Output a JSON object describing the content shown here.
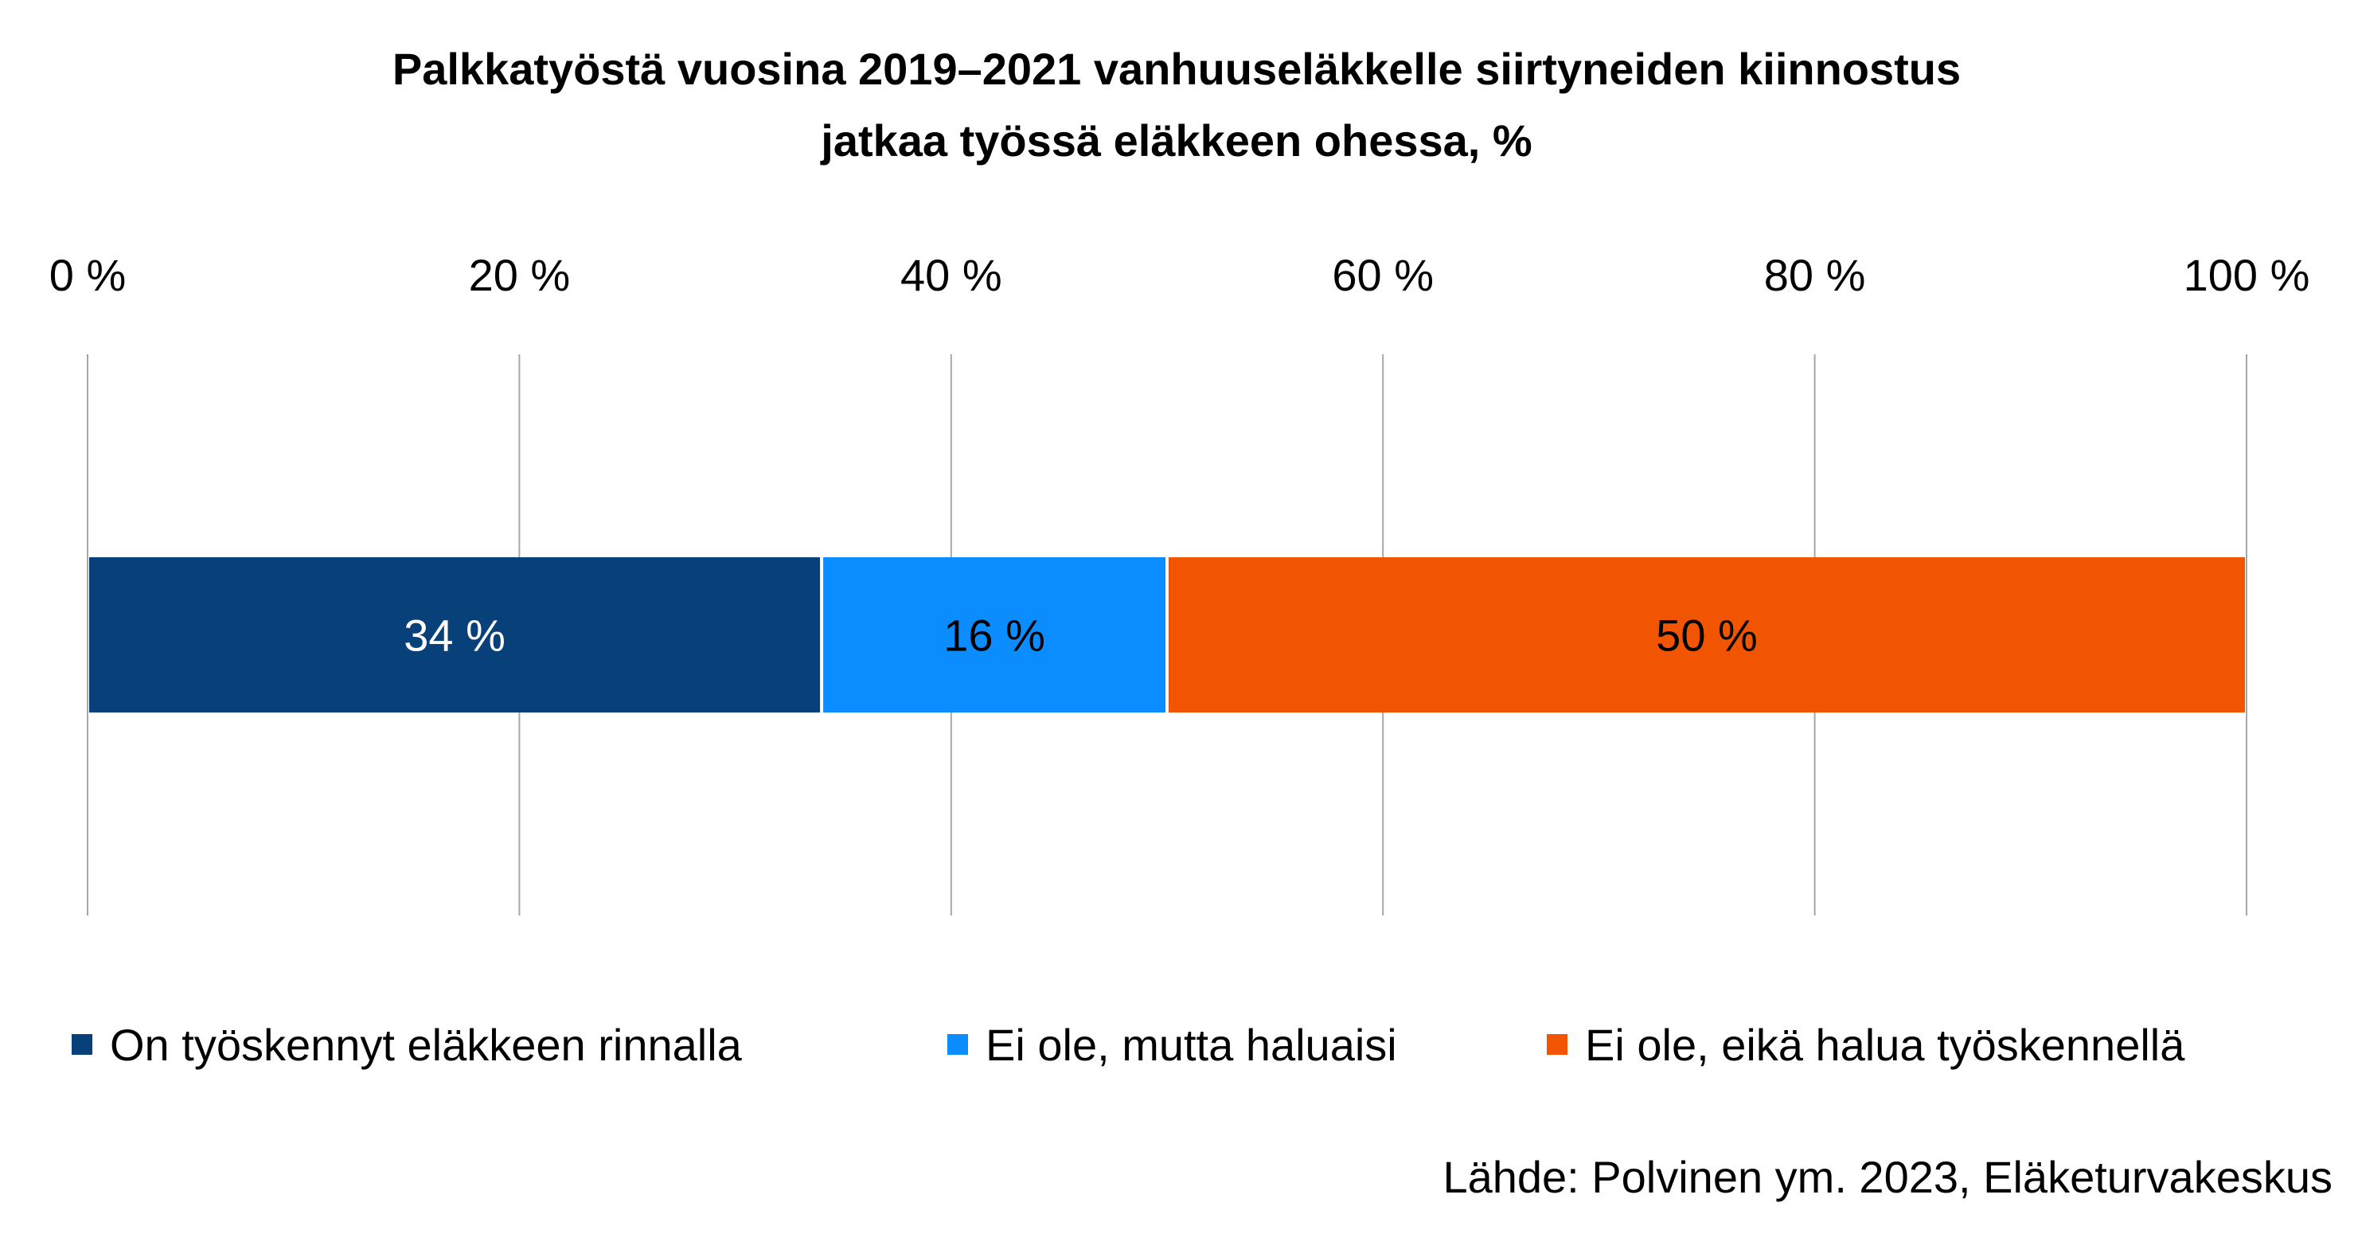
{
  "chart_data": {
    "type": "bar",
    "orientation": "horizontal",
    "stacked": true,
    "title": [
      "Palkkatyöstä vuosina 2019–2021 vanhuuseläkkelle siirtyneiden kiinnostus",
      "jatkaa työssä eläkkeen ohessa, %"
    ],
    "x_ticks": [
      "0 %",
      "20 %",
      "40 %",
      "60 %",
      "80 %",
      "100 %"
    ],
    "xlim": [
      0,
      100
    ],
    "x_tick_values": [
      0,
      20,
      40,
      60,
      80,
      100
    ],
    "tick_position": "top",
    "grid": true,
    "series": [
      {
        "name": "On työskennyt eläkkeen rinnalla",
        "value": 34,
        "label": "34 %",
        "color": "#08407a",
        "label_color": "#ffffff"
      },
      {
        "name": "Ei ole, mutta haluaisi",
        "value": 16,
        "label": "16 %",
        "color": "#0b8cff",
        "label_color": "#000000"
      },
      {
        "name": "Ei ole, eikä halua työskennellä",
        "value": 50,
        "label": "50 %",
        "color": "#f25502",
        "label_color": "#000000"
      }
    ],
    "legend_position": "bottom",
    "source": "Lähde: Polvinen ym. 2023, Eläketurvakeskus"
  }
}
